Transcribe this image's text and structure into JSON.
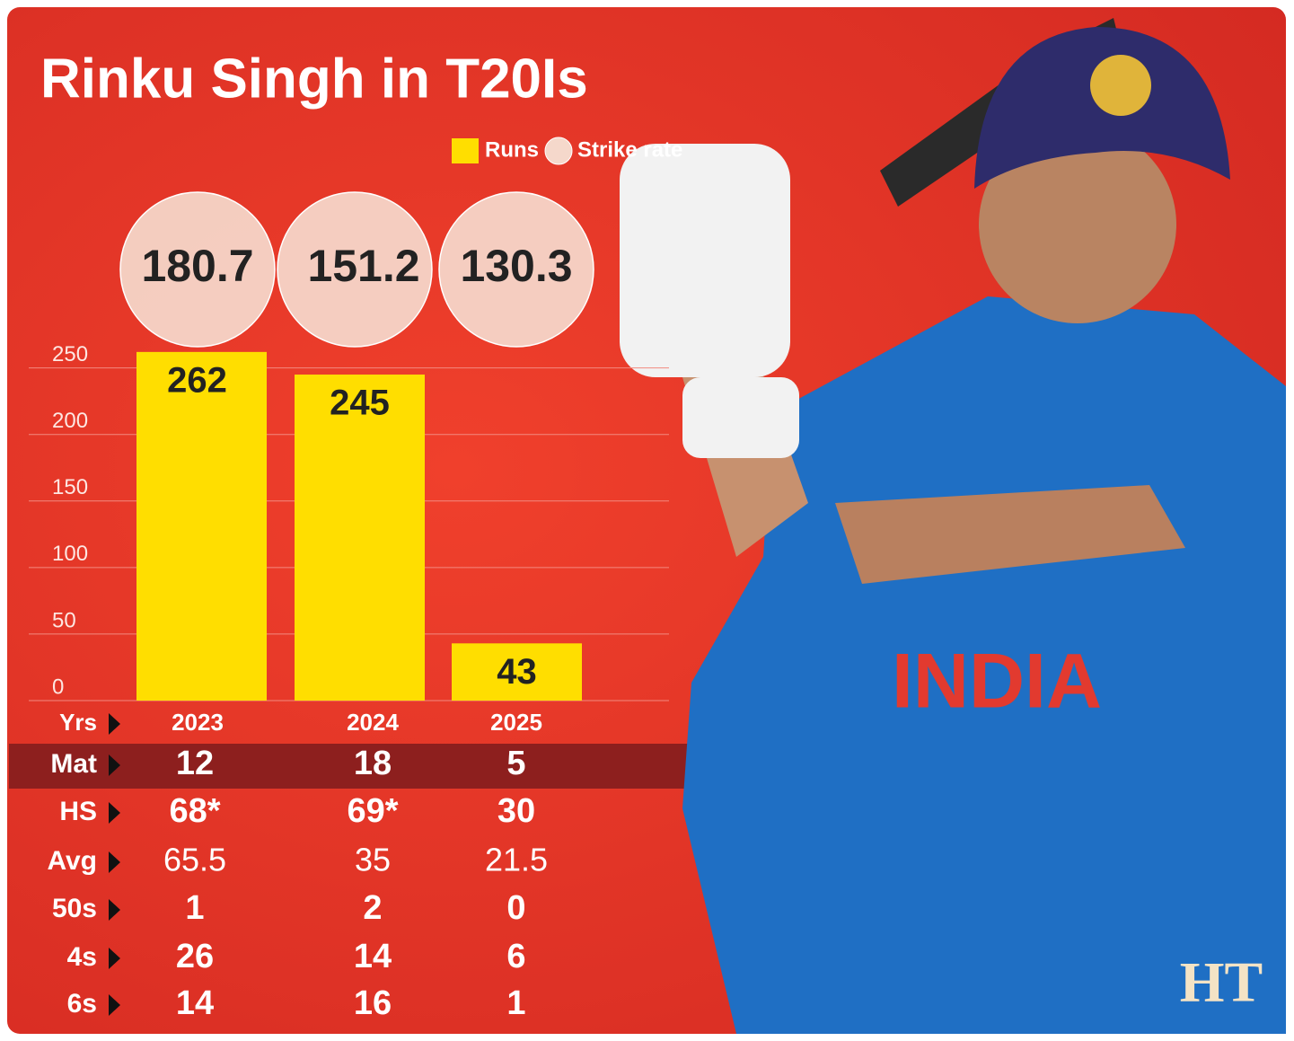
{
  "chart_data": {
    "type": "bar",
    "title": "Rinku Singh in T20Is",
    "categories": [
      "2023",
      "2024",
      "2025"
    ],
    "series": [
      {
        "name": "Runs",
        "color": "#ffde00",
        "values": [
          262,
          245,
          43
        ]
      },
      {
        "name": "Strike rate",
        "color": "#f5d8cb",
        "values": [
          180.7,
          151.2,
          130.3
        ]
      }
    ],
    "ylim": [
      0,
      270
    ],
    "yticks": [
      0,
      50,
      100,
      150,
      200,
      250
    ],
    "grid": true,
    "table": {
      "header": "Yrs",
      "rows": [
        {
          "label": "Mat",
          "values": [
            12,
            18,
            5
          ]
        },
        {
          "label": "HS",
          "values": [
            "68*",
            "69*",
            30
          ]
        },
        {
          "label": "Avg",
          "values": [
            65.5,
            35,
            21.5
          ]
        },
        {
          "label": "50s",
          "values": [
            1,
            2,
            0
          ]
        },
        {
          "label": "4s",
          "values": [
            26,
            14,
            6
          ]
        },
        {
          "label": "6s",
          "values": [
            14,
            16,
            1
          ]
        }
      ]
    }
  },
  "jersey": "INDIA",
  "logo": "HT"
}
